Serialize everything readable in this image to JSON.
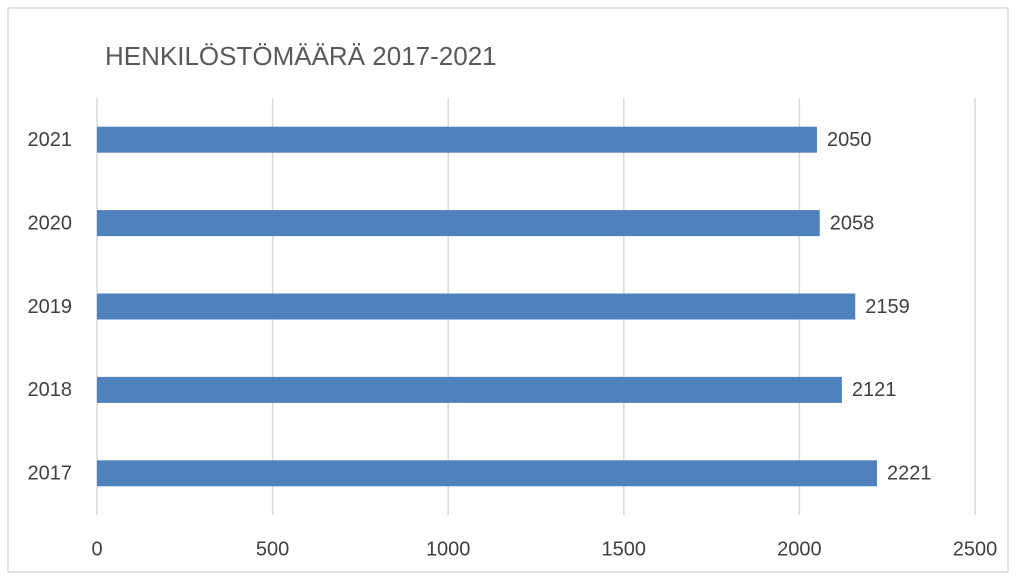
{
  "chart_data": {
    "type": "bar",
    "orientation": "horizontal",
    "title": "HENKILÖSTÖMÄÄRÄ 2017-2021",
    "categories": [
      "2017",
      "2018",
      "2019",
      "2020",
      "2021"
    ],
    "values": [
      2221,
      2121,
      2159,
      2058,
      2050
    ],
    "color": "#4f81bd",
    "xlim": [
      0,
      2500
    ],
    "xticks": [
      0,
      500,
      1000,
      1500,
      2000,
      2500
    ],
    "grid": true
  }
}
